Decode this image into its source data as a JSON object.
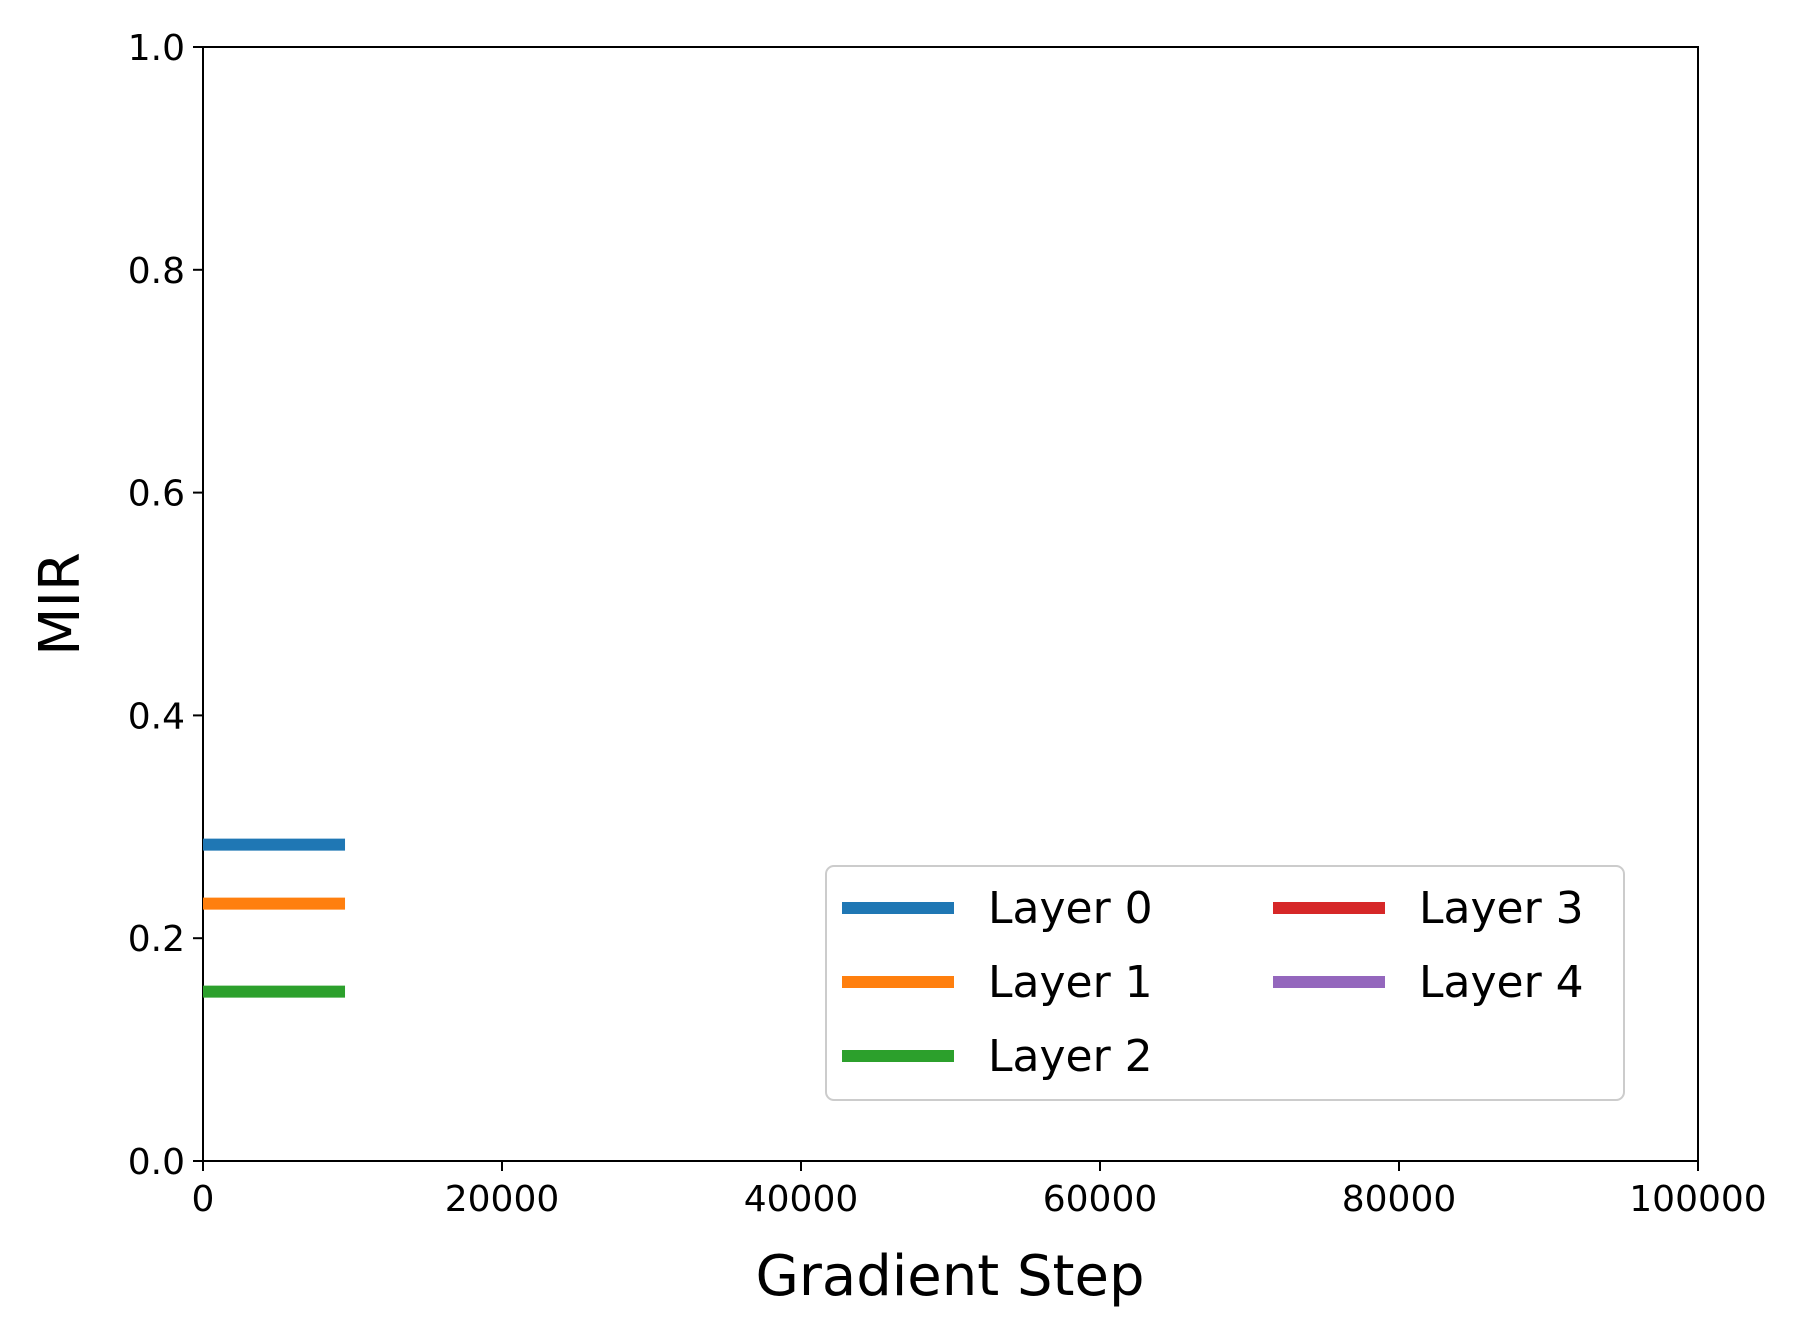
{
  "chart_data": {
    "type": "line",
    "title": "",
    "xlabel": "Gradient Step",
    "ylabel": "MIR",
    "xlim": [
      0,
      100000
    ],
    "ylim": [
      0.0,
      1.0
    ],
    "x_tick_labels": [
      "0",
      "20000",
      "40000",
      "60000",
      "80000",
      "100000"
    ],
    "x_ticks": [
      0,
      20000,
      40000,
      60000,
      80000,
      100000
    ],
    "y_tick_labels": [
      "0.0",
      "0.2",
      "0.4",
      "0.6",
      "0.8",
      "1.0"
    ],
    "y_ticks": [
      0.0,
      0.2,
      0.4,
      0.6,
      0.8,
      1.0
    ],
    "grid": false,
    "legend_position": "lower-right",
    "legend_columns": 2,
    "series": [
      {
        "name": "Layer 0",
        "color": "#1f77b4",
        "x": [
          0,
          9500
        ],
        "y": [
          0.284,
          0.284
        ]
      },
      {
        "name": "Layer 1",
        "color": "#ff7f0e",
        "x": [
          0,
          9500
        ],
        "y": [
          0.231,
          0.231
        ]
      },
      {
        "name": "Layer 2",
        "color": "#2ca02c",
        "x": [
          0,
          9500
        ],
        "y": [
          0.152,
          0.152
        ]
      },
      {
        "name": "Layer 3",
        "color": "#d62728",
        "x": [],
        "y": []
      },
      {
        "name": "Layer 4",
        "color": "#9467bd",
        "x": [],
        "y": []
      }
    ]
  }
}
